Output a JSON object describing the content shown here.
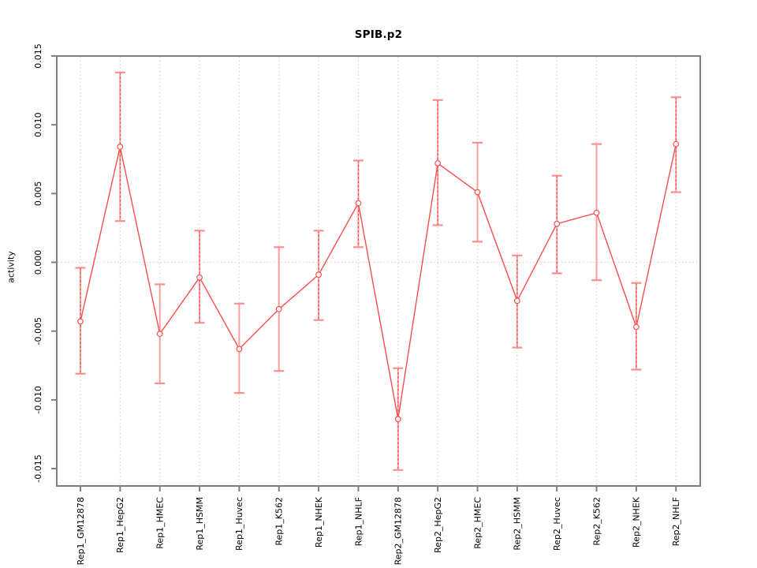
{
  "chart_data": {
    "type": "line",
    "title": "SPIB.p2",
    "ylabel": "activity",
    "legend": "none",
    "grid": "vertical-dotted-per-category",
    "zero_reference_line": true,
    "categories": [
      "Rep1_GM12878",
      "Rep1_HepG2",
      "Rep1_HMEC",
      "Rep1_HSMM",
      "Rep1_Huvec",
      "Rep1_K562",
      "Rep1_NHEK",
      "Rep1_NHLF",
      "Rep2_GM12878",
      "Rep2_HepG2",
      "Rep2_HMEC",
      "Rep2_HSMM",
      "Rep2_Huvec",
      "Rep2_K562",
      "Rep2_NHEK",
      "Rep2_NHLF"
    ],
    "series": [
      {
        "name": "activity",
        "values": [
          -0.0043,
          0.0084,
          -0.0052,
          -0.0011,
          -0.0063,
          -0.0034,
          -0.0009,
          0.0043,
          -0.0114,
          0.0072,
          0.0051,
          -0.0028,
          0.0028,
          0.0036,
          -0.0047,
          0.0086
        ],
        "lower": [
          -0.0081,
          0.003,
          -0.0088,
          -0.0044,
          -0.0095,
          -0.0079,
          -0.0042,
          0.0011,
          -0.0151,
          0.0027,
          0.0015,
          -0.0062,
          -0.0008,
          -0.0013,
          -0.0078,
          0.0051
        ],
        "upper": [
          -0.0004,
          0.0138,
          -0.0016,
          0.0023,
          -0.003,
          0.0011,
          0.0023,
          0.0074,
          -0.0077,
          0.0118,
          0.0087,
          0.0005,
          0.0063,
          0.0086,
          -0.0015,
          0.012
        ],
        "bar_style": [
          "dashed",
          "dashed",
          "pink",
          "dashed",
          "pink",
          "pink",
          "dashed",
          "dashed",
          "dashed",
          "dashed",
          "pink",
          "dashed",
          "dashed",
          "pink",
          "dashed",
          "dashed"
        ]
      }
    ],
    "ylim": [
      -0.01626,
      0.015
    ],
    "yticks": [
      0.015,
      0.01,
      0.005,
      0.0,
      -0.005,
      -0.01,
      -0.015
    ],
    "ytick_labels": [
      "0.015",
      "0.010",
      "0.005",
      "0.000",
      "-0.005",
      "-0.010",
      "-0.015"
    ],
    "colors": {
      "line": "#fb4d4d",
      "marker_stroke": "#fb4d4d",
      "error_bar": "#ff9d9d",
      "error_cap": "#ff8d8d",
      "error_dash_overlay": "#f14040",
      "frame": "#7e7e7e",
      "gridline": "#d8d8d8",
      "zero_line": "#ffc9c9",
      "text": "#000000"
    }
  }
}
